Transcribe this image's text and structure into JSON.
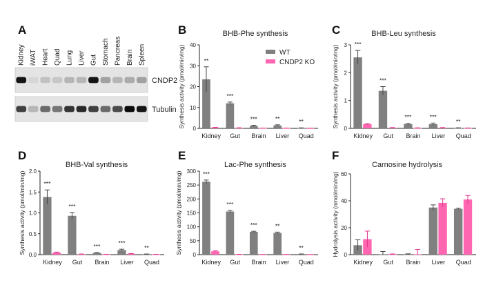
{
  "figure": {
    "panel_letters": [
      "A",
      "B",
      "C",
      "D",
      "E",
      "F"
    ]
  },
  "blot": {
    "lanes": [
      "Kidney",
      "iWAT",
      "Heart",
      "Quad",
      "Lung",
      "Liver",
      "Gut",
      "Stomach",
      "Pancreas",
      "Brain",
      "Spleen"
    ],
    "rows": [
      {
        "label": "CNDP2",
        "intensity": [
          0.95,
          0.05,
          0.15,
          0.12,
          0.2,
          0.2,
          0.95,
          0.3,
          0.2,
          0.25,
          0.3
        ]
      },
      {
        "label": "Tubulin",
        "intensity": [
          0.75,
          0.2,
          0.55,
          0.5,
          0.8,
          0.85,
          0.75,
          0.55,
          0.7,
          1.0,
          0.95
        ]
      }
    ]
  },
  "legend": {
    "entries": [
      {
        "name": "WT",
        "color": "#808080"
      },
      {
        "name": "CNDP2 KO",
        "color": "#ff66b2"
      }
    ]
  },
  "chart_data": [
    {
      "letter": "B",
      "type": "bar",
      "title": "BHB-Phe synthesis",
      "ylabel": "Synthesis activity (pmol/min/mg)",
      "categories": [
        "Kidney",
        "Gut",
        "Brain",
        "Liver",
        "Quad"
      ],
      "ylim": [
        0,
        40
      ],
      "yticks": [
        0,
        10,
        20,
        30,
        40
      ],
      "series": [
        {
          "name": "WT",
          "color": "#808080",
          "values": [
            23.5,
            12,
            1.2,
            1.4,
            0.15
          ],
          "errors": [
            6,
            0.6,
            0.3,
            0.3,
            0.1
          ]
        },
        {
          "name": "CNDP2 KO",
          "color": "#ff66b2",
          "values": [
            0.4,
            0.2,
            0.1,
            0.1,
            0.05
          ],
          "errors": [
            0.1,
            0.1,
            0.05,
            0.05,
            0.03
          ]
        }
      ],
      "significance": [
        "**",
        "***",
        "***",
        "**",
        "**"
      ]
    },
    {
      "letter": "C",
      "type": "bar",
      "title": "BHB-Leu synthesis",
      "ylabel": "Synthesis activity (pmol/min/mg)",
      "categories": [
        "Kidney",
        "Gut",
        "Brain",
        "Liver",
        "Quad"
      ],
      "ylim": [
        0,
        3
      ],
      "yticks": [
        0,
        1,
        2,
        3
      ],
      "series": [
        {
          "name": "WT",
          "color": "#808080",
          "values": [
            2.55,
            1.35,
            0.15,
            0.15,
            0.01
          ],
          "errors": [
            0.25,
            0.15,
            0.03,
            0.04,
            0.01
          ]
        },
        {
          "name": "CNDP2 KO",
          "color": "#ff66b2",
          "values": [
            0.15,
            0.02,
            0.01,
            0.02,
            0.01
          ],
          "errors": [
            0.02,
            0.01,
            0.01,
            0.01,
            0.005
          ]
        }
      ],
      "significance": [
        "***",
        "***",
        "***",
        "***",
        "**"
      ]
    },
    {
      "letter": "D",
      "type": "bar",
      "title": "BHB-Val synthesis",
      "ylabel": "Synthesis activity (pmol/min/mg)",
      "categories": [
        "Kidney",
        "Gut",
        "Brain",
        "Liver",
        "Quad"
      ],
      "ylim": [
        0,
        2.0
      ],
      "yticks": [
        0,
        0.5,
        1.0,
        1.5,
        2.0
      ],
      "ytick_labels": [
        "0.0",
        "0.5",
        "1.0",
        "1.5",
        "2.0"
      ],
      "series": [
        {
          "name": "WT",
          "color": "#808080",
          "values": [
            1.38,
            0.93,
            0.04,
            0.11,
            0.01
          ],
          "errors": [
            0.17,
            0.08,
            0.01,
            0.02,
            0.005
          ]
        },
        {
          "name": "CNDP2 KO",
          "color": "#ff66b2",
          "values": [
            0.05,
            0.01,
            0.005,
            0.02,
            0.005
          ],
          "errors": [
            0.01,
            0.005,
            0.003,
            0.005,
            0.003
          ]
        }
      ],
      "significance": [
        "***",
        "***",
        "***",
        "***",
        "**"
      ]
    },
    {
      "letter": "E",
      "type": "bar",
      "title": "Lac-Phe synthesis",
      "ylabel": "Synthesis activity (pmol/min/mg)",
      "categories": [
        "Kidney",
        "Gut",
        "Brain",
        "Liver",
        "Quad"
      ],
      "ylim": [
        0,
        300
      ],
      "yticks": [
        0,
        50,
        100,
        150,
        200,
        250,
        300
      ],
      "series": [
        {
          "name": "WT",
          "color": "#808080",
          "values": [
            262,
            155,
            82,
            78,
            2
          ],
          "errors": [
            6,
            4,
            2,
            3,
            0.5
          ]
        },
        {
          "name": "CNDP2 KO",
          "color": "#ff66b2",
          "values": [
            12,
            1,
            0.5,
            0.5,
            0.3
          ],
          "errors": [
            2,
            0.3,
            0.2,
            0.2,
            0.1
          ]
        }
      ],
      "significance": [
        "***",
        "***",
        "***",
        "**",
        "**"
      ]
    },
    {
      "letter": "F",
      "type": "bar",
      "title": "Carnosine hydrolysis",
      "ylabel": "Hydrolysis activity (nmol/min/mg)",
      "categories": [
        "Kidney",
        "Gut",
        "Brain",
        "Liver",
        "Quad"
      ],
      "ylim": [
        0,
        60
      ],
      "yticks": [
        0,
        20,
        40,
        60
      ],
      "series": [
        {
          "name": "WT",
          "color": "#808080",
          "values": [
            7,
            0.3,
            0.1,
            35,
            34
          ],
          "errors": [
            4,
            2,
            0.5,
            2,
            0.5
          ]
        },
        {
          "name": "CNDP2 KO",
          "color": "#ff66b2",
          "values": [
            11.5,
            0.2,
            0.3,
            38.5,
            41
          ],
          "errors": [
            6,
            0.3,
            3.5,
            3,
            3
          ]
        }
      ],
      "significance": [
        "",
        "",
        "",
        "",
        ""
      ]
    }
  ]
}
